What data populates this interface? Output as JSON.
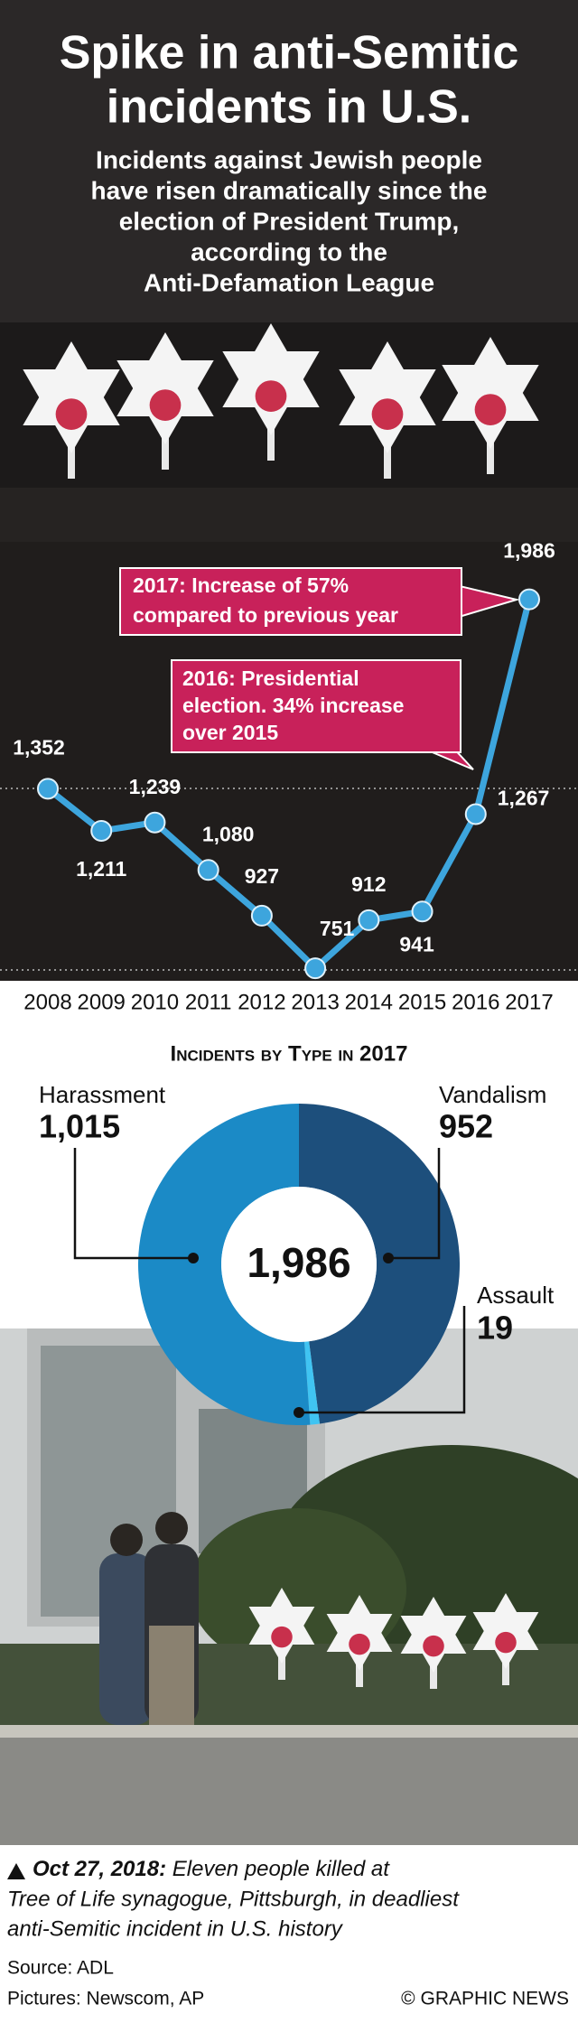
{
  "header": {
    "title_lines": [
      "Spike in anti-Semitic",
      "incidents in U.S."
    ],
    "subtitle_lines": [
      "Incidents against Jewish people",
      "have risen dramatically since the",
      "election of President Trump,",
      "according to the",
      "Anti-Defamation League"
    ]
  },
  "chart_data": [
    {
      "type": "line",
      "x": [
        2008,
        2009,
        2010,
        2011,
        2012,
        2013,
        2014,
        2015,
        2016,
        2017
      ],
      "values": [
        1352,
        1211,
        1239,
        1080,
        927,
        751,
        912,
        941,
        1267,
        1986
      ],
      "value_labels": [
        "1,352",
        "1,211",
        "1,239",
        "1,080",
        "927",
        "751",
        "912",
        "941",
        "1,267",
        "1,986"
      ],
      "color": "#3da5dd",
      "xlim": [
        2008,
        2017
      ],
      "ylim": [
        700,
        2000
      ],
      "annotations": [
        {
          "lines": [
            "2017: Increase of 57%",
            "compared to previous year"
          ]
        },
        {
          "lines": [
            "2016: Presidential",
            "election. 34% increase",
            "over 2015"
          ]
        }
      ]
    },
    {
      "type": "pie",
      "title": "Incidents by Type in 2017",
      "categories": [
        "Harassment",
        "Vandalism",
        "Assault"
      ],
      "values": [
        1015,
        952,
        19
      ],
      "value_labels": [
        "1,015",
        "952",
        "19"
      ],
      "colors": [
        "#1b8ac6",
        "#1d4f7c",
        "#40c4f2"
      ],
      "total": {
        "value": 1986,
        "label": "1,986"
      }
    }
  ],
  "caption": {
    "date": "Oct 27, 2018:",
    "lines": [
      " Eleven people killed at",
      "Tree of Life synagogue, Pittsburgh, in deadliest",
      "anti-Semitic incident in U.S. history"
    ]
  },
  "footer": {
    "source": "Source: ADL",
    "pictures": "Pictures: Newscom, AP",
    "credit": "© GRAPHIC NEWS"
  }
}
